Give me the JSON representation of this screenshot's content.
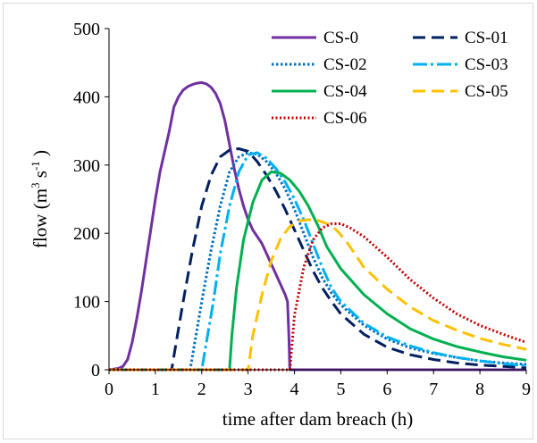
{
  "chart_data": {
    "type": "line",
    "xlabel": "time after dam breach (h)",
    "ylabel": {
      "base": "flow (m",
      "sup1": "3",
      "mid": " s",
      "sup2": "-1",
      "end": " )"
    },
    "xlim": [
      0,
      9
    ],
    "ylim": [
      0,
      500
    ],
    "xticks": [
      "0",
      "1",
      "2",
      "3",
      "4",
      "5",
      "6",
      "7",
      "8",
      "9"
    ],
    "yticks": [
      "0",
      "100",
      "200",
      "300",
      "400",
      "500"
    ],
    "grid": false,
    "legend_position": "top-right",
    "series": [
      {
        "name": "CS-0",
        "color": "#7030a0",
        "dash": "solid",
        "points": [
          [
            0,
            0
          ],
          [
            0.2,
            2
          ],
          [
            0.3,
            5
          ],
          [
            0.4,
            15
          ],
          [
            0.5,
            40
          ],
          [
            0.6,
            75
          ],
          [
            0.7,
            115
          ],
          [
            0.8,
            160
          ],
          [
            0.9,
            205
          ],
          [
            1,
            250
          ],
          [
            1.1,
            290
          ],
          [
            1.2,
            320
          ],
          [
            1.3,
            350
          ],
          [
            1.4,
            385
          ],
          [
            1.5,
            400
          ],
          [
            1.6,
            410
          ],
          [
            1.7,
            415
          ],
          [
            1.8,
            418
          ],
          [
            1.9,
            420
          ],
          [
            2.0,
            421
          ],
          [
            2.1,
            419
          ],
          [
            2.2,
            414
          ],
          [
            2.3,
            405
          ],
          [
            2.4,
            390
          ],
          [
            2.5,
            365
          ],
          [
            2.6,
            330
          ],
          [
            2.7,
            295
          ],
          [
            2.8,
            265
          ],
          [
            2.9,
            240
          ],
          [
            3.0,
            220
          ],
          [
            3.1,
            205
          ],
          [
            3.2,
            195
          ],
          [
            3.3,
            185
          ],
          [
            3.4,
            170
          ],
          [
            3.5,
            155
          ],
          [
            3.6,
            140
          ],
          [
            3.7,
            125
          ],
          [
            3.8,
            110
          ],
          [
            3.85,
            100
          ],
          [
            3.88,
            50
          ],
          [
            3.9,
            0
          ],
          [
            9,
            0
          ]
        ]
      },
      {
        "name": "CS-01",
        "color": "#002060",
        "dash": "long",
        "points": [
          [
            0,
            0
          ],
          [
            1.35,
            0
          ],
          [
            1.45,
            40
          ],
          [
            1.6,
            100
          ],
          [
            1.8,
            175
          ],
          [
            2.0,
            240
          ],
          [
            2.2,
            285
          ],
          [
            2.4,
            312
          ],
          [
            2.6,
            322
          ],
          [
            2.8,
            324
          ],
          [
            3.0,
            320
          ],
          [
            3.2,
            305
          ],
          [
            3.4,
            285
          ],
          [
            3.6,
            262
          ],
          [
            3.8,
            235
          ],
          [
            4.0,
            205
          ],
          [
            4.2,
            175
          ],
          [
            4.4,
            145
          ],
          [
            4.6,
            120
          ],
          [
            4.8,
            100
          ],
          [
            5.0,
            82
          ],
          [
            5.5,
            52
          ],
          [
            6,
            33
          ],
          [
            6.5,
            22
          ],
          [
            7,
            15
          ],
          [
            7.5,
            10
          ],
          [
            8,
            7
          ],
          [
            8.5,
            5
          ],
          [
            9,
            3
          ]
        ]
      },
      {
        "name": "CS-02",
        "color": "#0070c0",
        "dash": "dot",
        "points": [
          [
            0,
            0
          ],
          [
            1.75,
            0
          ],
          [
            1.85,
            40
          ],
          [
            2.0,
            100
          ],
          [
            2.2,
            175
          ],
          [
            2.4,
            240
          ],
          [
            2.6,
            290
          ],
          [
            2.8,
            312
          ],
          [
            3.0,
            318
          ],
          [
            3.2,
            316
          ],
          [
            3.4,
            305
          ],
          [
            3.6,
            288
          ],
          [
            3.8,
            265
          ],
          [
            4.0,
            235
          ],
          [
            4.2,
            200
          ],
          [
            4.4,
            165
          ],
          [
            4.6,
            135
          ],
          [
            4.8,
            112
          ],
          [
            5.0,
            95
          ],
          [
            5.5,
            65
          ],
          [
            6,
            45
          ],
          [
            6.5,
            32
          ],
          [
            7,
            24
          ],
          [
            7.5,
            18
          ],
          [
            8,
            13
          ],
          [
            8.5,
            10
          ],
          [
            9,
            8
          ]
        ]
      },
      {
        "name": "CS-03",
        "color": "#00b0f0",
        "dash": "dashdot",
        "points": [
          [
            0,
            0
          ],
          [
            2.0,
            0
          ],
          [
            2.1,
            40
          ],
          [
            2.25,
            100
          ],
          [
            2.4,
            170
          ],
          [
            2.6,
            240
          ],
          [
            2.8,
            290
          ],
          [
            3.0,
            315
          ],
          [
            3.2,
            318
          ],
          [
            3.4,
            310
          ],
          [
            3.6,
            295
          ],
          [
            3.8,
            275
          ],
          [
            4.0,
            250
          ],
          [
            4.2,
            220
          ],
          [
            4.4,
            185
          ],
          [
            4.6,
            150
          ],
          [
            4.8,
            120
          ],
          [
            5.0,
            100
          ],
          [
            5.5,
            68
          ],
          [
            6,
            48
          ],
          [
            6.5,
            35
          ],
          [
            7,
            25
          ],
          [
            7.5,
            18
          ],
          [
            8,
            13
          ],
          [
            8.5,
            9
          ],
          [
            9,
            6
          ]
        ]
      },
      {
        "name": "CS-04",
        "color": "#00b050",
        "dash": "solid",
        "points": [
          [
            0,
            0
          ],
          [
            2.6,
            0
          ],
          [
            2.65,
            50
          ],
          [
            2.75,
            120
          ],
          [
            2.9,
            190
          ],
          [
            3.1,
            245
          ],
          [
            3.3,
            278
          ],
          [
            3.5,
            290
          ],
          [
            3.7,
            288
          ],
          [
            3.9,
            278
          ],
          [
            4.1,
            262
          ],
          [
            4.3,
            240
          ],
          [
            4.5,
            212
          ],
          [
            4.7,
            180
          ],
          [
            5.0,
            148
          ],
          [
            5.5,
            110
          ],
          [
            6,
            82
          ],
          [
            6.5,
            60
          ],
          [
            7,
            45
          ],
          [
            7.5,
            34
          ],
          [
            8,
            26
          ],
          [
            8.5,
            19
          ],
          [
            9,
            14
          ]
        ]
      },
      {
        "name": "CS-05",
        "color": "#ffc000",
        "dash": "long",
        "points": [
          [
            0,
            0
          ],
          [
            3.0,
            0
          ],
          [
            3.1,
            50
          ],
          [
            3.3,
            110
          ],
          [
            3.5,
            160
          ],
          [
            3.7,
            192
          ],
          [
            3.9,
            210
          ],
          [
            4.1,
            218
          ],
          [
            4.3,
            220
          ],
          [
            4.5,
            219
          ],
          [
            4.7,
            214
          ],
          [
            4.9,
            205
          ],
          [
            5.1,
            190
          ],
          [
            5.3,
            170
          ],
          [
            5.5,
            150
          ],
          [
            6,
            118
          ],
          [
            6.5,
            92
          ],
          [
            7,
            72
          ],
          [
            7.5,
            58
          ],
          [
            8,
            46
          ],
          [
            8.5,
            37
          ],
          [
            9,
            30
          ]
        ]
      },
      {
        "name": "CS-06",
        "color": "#c00000",
        "dash": "densedot",
        "points": [
          [
            0,
            0
          ],
          [
            3.9,
            0
          ],
          [
            4.0,
            80
          ],
          [
            4.2,
            150
          ],
          [
            4.4,
            190
          ],
          [
            4.6,
            208
          ],
          [
            4.8,
            214
          ],
          [
            5.0,
            214
          ],
          [
            5.2,
            208
          ],
          [
            5.5,
            195
          ],
          [
            6,
            165
          ],
          [
            6.5,
            132
          ],
          [
            7,
            105
          ],
          [
            7.5,
            82
          ],
          [
            8,
            65
          ],
          [
            8.5,
            52
          ],
          [
            9,
            40
          ]
        ]
      }
    ]
  }
}
